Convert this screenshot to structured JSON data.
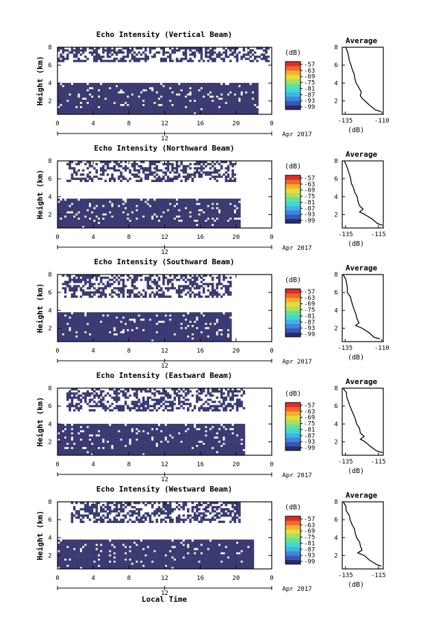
{
  "figure": {
    "xlabel": "Local Time",
    "date_label": "Apr 2017",
    "noon_label": "12",
    "colorbar_unit": "(dB)",
    "avg_title": "Average",
    "avg_xlabel": "(dB)",
    "panel_ylabel": "Height (km)"
  },
  "colors": {
    "data_fill": "#3b3b72",
    "colorbar": [
      "#2b2b6e",
      "#3858b8",
      "#3f86d8",
      "#3fb4e6",
      "#44d8d0",
      "#63e09a",
      "#a8e060",
      "#e6dc3c",
      "#f5ae2e",
      "#ee6a2a",
      "#e02b2b"
    ]
  },
  "chart_data": [
    {
      "type": "heatmap",
      "title": "Echo Intensity (Vertical Beam)",
      "ylabel": "Height (km)",
      "xlabel": "",
      "x_ticks": [
        "0",
        "4",
        "8",
        "12",
        "16",
        "20",
        "0"
      ],
      "y_ticks": [
        "2",
        "4",
        "6",
        "8"
      ],
      "xlim": [
        0,
        24
      ],
      "ylim": [
        0.5,
        8
      ],
      "colorbar": {
        "unit": "(dB)",
        "ticks": [
          "-57",
          "-63",
          "-69",
          "-75",
          "-81",
          "-87",
          "-93",
          "-99"
        ]
      },
      "echo_layers": [
        {
          "name": "low",
          "from_h": 0.5,
          "to_h": 3.9,
          "from_t": 0,
          "to_t": 22.5
        },
        {
          "name": "upper",
          "from_h": 6.4,
          "to_h": 8.0,
          "from_t": 0,
          "to_t": 23.8
        }
      ],
      "average_profile": {
        "title": "Average",
        "xlabel": "(dB)",
        "x_ticks": [
          "-135",
          "-110"
        ],
        "y_ticks": [
          "2",
          "4",
          "6",
          "8"
        ],
        "xlim": [
          -137,
          -109
        ],
        "heights": [
          0.8,
          1.0,
          1.5,
          2.0,
          2.3,
          2.6,
          3.0,
          3.5,
          4.0,
          4.5,
          5.0,
          5.5,
          6.0,
          6.5,
          7.0,
          7.5,
          8.0
        ],
        "values": [
          -110,
          -114,
          -118,
          -122,
          -123,
          -125,
          -124,
          -126,
          -127,
          -128,
          -129,
          -130,
          -131,
          -132,
          -133,
          -134,
          -135
        ]
      }
    },
    {
      "type": "heatmap",
      "title": "Echo Intensity (Northward Beam)",
      "ylabel": "Height (km)",
      "xlabel": "",
      "x_ticks": [
        "0",
        "4",
        "8",
        "12",
        "16",
        "20",
        "0"
      ],
      "y_ticks": [
        "2",
        "4",
        "6",
        "8"
      ],
      "xlim": [
        0,
        24
      ],
      "ylim": [
        0.5,
        8
      ],
      "colorbar": {
        "unit": "(dB)",
        "ticks": [
          "-57",
          "-63",
          "-69",
          "-75",
          "-81",
          "-87",
          "-93",
          "-99"
        ]
      },
      "echo_layers": [
        {
          "name": "low",
          "from_h": 0.5,
          "to_h": 3.8,
          "from_t": 0,
          "to_t": 20.5
        },
        {
          "name": "upper",
          "from_h": 5.6,
          "to_h": 8.0,
          "from_t": 1,
          "to_t": 20
        }
      ],
      "average_profile": {
        "title": "Average",
        "xlabel": "(dB)",
        "x_ticks": [
          "-135",
          "-115"
        ],
        "y_ticks": [
          "2",
          "4",
          "6",
          "8"
        ],
        "xlim": [
          -137,
          -112
        ],
        "heights": [
          0.8,
          1.0,
          1.5,
          2.0,
          2.3,
          2.6,
          3.0,
          3.5,
          4.0,
          4.5,
          5.0,
          5.5,
          6.0,
          6.5,
          7.0,
          7.5,
          8.0
        ],
        "values": [
          -113,
          -116,
          -119,
          -123,
          -126,
          -124,
          -126,
          -127,
          -128,
          -129,
          -130,
          -131,
          -132,
          -133,
          -134,
          -135,
          -136
        ]
      }
    },
    {
      "type": "heatmap",
      "title": "Echo Intensity (Southward Beam)",
      "ylabel": "Height (km)",
      "xlabel": "",
      "x_ticks": [
        "0",
        "4",
        "8",
        "12",
        "16",
        "20",
        "0"
      ],
      "y_ticks": [
        "2",
        "4",
        "6",
        "8"
      ],
      "xlim": [
        0,
        24
      ],
      "ylim": [
        0.5,
        8
      ],
      "colorbar": {
        "unit": "(dB)",
        "ticks": [
          "-57",
          "-63",
          "-69",
          "-75",
          "-81",
          "-87",
          "-93",
          "-99"
        ]
      },
      "echo_layers": [
        {
          "name": "low",
          "from_h": 0.5,
          "to_h": 3.7,
          "from_t": 0,
          "to_t": 19.5
        },
        {
          "name": "upper",
          "from_h": 5.5,
          "to_h": 8.0,
          "from_t": 0.5,
          "to_t": 19.5
        }
      ],
      "average_profile": {
        "title": "Average",
        "xlabel": "(dB)",
        "x_ticks": [
          "-135",
          "-110"
        ],
        "y_ticks": [
          "2",
          "4",
          "6",
          "8"
        ],
        "xlim": [
          -137,
          -109
        ],
        "heights": [
          0.8,
          1.0,
          1.5,
          2.0,
          2.3,
          2.6,
          3.0,
          3.5,
          4.0,
          4.5,
          5.0,
          5.5,
          6.0,
          6.5,
          7.0,
          7.5,
          8.0
        ],
        "values": [
          -111,
          -115,
          -119,
          -124,
          -128,
          -125,
          -127,
          -128,
          -129,
          -130,
          -131,
          -132,
          -133,
          -133,
          -134,
          -135,
          -136
        ]
      }
    },
    {
      "type": "heatmap",
      "title": "Echo Intensity (Eastward Beam)",
      "ylabel": "Height (km)",
      "xlabel": "",
      "x_ticks": [
        "0",
        "4",
        "8",
        "12",
        "16",
        "20",
        "0"
      ],
      "y_ticks": [
        "2",
        "4",
        "6",
        "8"
      ],
      "xlim": [
        0,
        24
      ],
      "ylim": [
        0.5,
        8
      ],
      "colorbar": {
        "unit": "(dB)",
        "ticks": [
          "-57",
          "-63",
          "-69",
          "-75",
          "-81",
          "-87",
          "-93",
          "-99"
        ]
      },
      "echo_layers": [
        {
          "name": "low",
          "from_h": 0.5,
          "to_h": 3.9,
          "from_t": 0,
          "to_t": 21
        },
        {
          "name": "upper",
          "from_h": 5.5,
          "to_h": 8.0,
          "from_t": 1,
          "to_t": 21
        }
      ],
      "average_profile": {
        "title": "Average",
        "xlabel": "(dB)",
        "x_ticks": [
          "-135",
          "-115"
        ],
        "y_ticks": [
          "2",
          "4",
          "6",
          "8"
        ],
        "xlim": [
          -137,
          -112
        ],
        "heights": [
          0.8,
          1.0,
          1.5,
          2.0,
          2.3,
          2.6,
          3.0,
          3.5,
          4.0,
          4.5,
          5.0,
          5.5,
          6.0,
          6.5,
          7.0,
          7.5,
          8.0
        ],
        "values": [
          -113,
          -116,
          -120,
          -123,
          -126,
          -124,
          -126,
          -127,
          -128,
          -129,
          -130,
          -131,
          -132,
          -133,
          -134,
          -135,
          -136
        ]
      }
    },
    {
      "type": "heatmap",
      "title": "Echo Intensity (Westward Beam)",
      "ylabel": "Height (km)",
      "xlabel": "Local Time",
      "x_ticks": [
        "0",
        "4",
        "8",
        "12",
        "16",
        "20",
        "0"
      ],
      "y_ticks": [
        "2",
        "4",
        "6",
        "8"
      ],
      "xlim": [
        0,
        24
      ],
      "ylim": [
        0.5,
        8
      ],
      "colorbar": {
        "unit": "(dB)",
        "ticks": [
          "-57",
          "-63",
          "-69",
          "-75",
          "-81",
          "-87",
          "-93",
          "-99"
        ]
      },
      "echo_layers": [
        {
          "name": "low",
          "from_h": 0.5,
          "to_h": 3.8,
          "from_t": 0,
          "to_t": 22
        },
        {
          "name": "upper",
          "from_h": 5.6,
          "to_h": 8.0,
          "from_t": 1.5,
          "to_t": 20.5
        }
      ],
      "average_profile": {
        "title": "Average",
        "xlabel": "(dB)",
        "x_ticks": [
          "-135",
          "-115"
        ],
        "y_ticks": [
          "2",
          "4",
          "6",
          "8"
        ],
        "xlim": [
          -137,
          -112
        ],
        "heights": [
          0.8,
          1.0,
          1.5,
          2.0,
          2.3,
          2.6,
          3.0,
          3.5,
          4.0,
          4.5,
          5.0,
          5.5,
          6.0,
          6.5,
          7.0,
          7.5,
          8.0
        ],
        "values": [
          -113,
          -116,
          -120,
          -124,
          -127,
          -125,
          -126,
          -127,
          -128,
          -129,
          -130,
          -131,
          -132,
          -133,
          -134,
          -135,
          -136
        ]
      }
    }
  ]
}
